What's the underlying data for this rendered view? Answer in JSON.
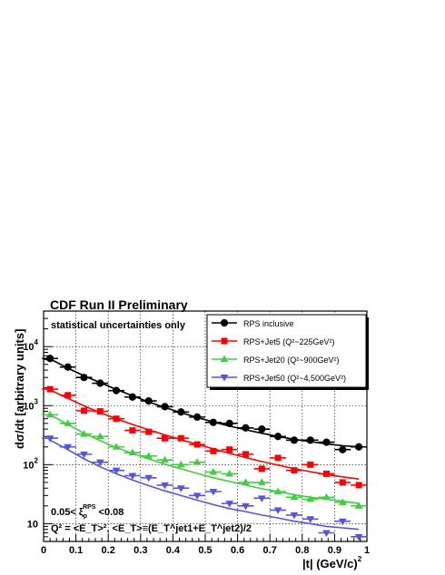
{
  "chart_data": {
    "type": "scatter",
    "title": "CDF Run II Preliminary",
    "subtitle": "statistical uncertainties only",
    "xlabel": "|t| (GeV/c)",
    "xlabel_sup": "2",
    "ylabel": "dσ/dt [arbitrary units]",
    "xlim": [
      0,
      1
    ],
    "ylim": [
      5,
      40000
    ],
    "yscale": "log",
    "grid": true,
    "legend_position": "top-right",
    "x_ticks": [
      "0",
      "0.1",
      "0.2",
      "0.3",
      "0.4",
      "0.5",
      "0.6",
      "0.7",
      "0.8",
      "0.9",
      "1"
    ],
    "y_ticks": [
      {
        "value": 10,
        "base": "10",
        "exp": ""
      },
      {
        "value": 100,
        "base": "10",
        "exp": "2"
      },
      {
        "value": 1000,
        "base": "10",
        "exp": "3"
      },
      {
        "value": 10000,
        "base": "10",
        "exp": "4"
      }
    ],
    "annotations": [
      {
        "base": "0.05< ξ",
        "sub": "p",
        "sup": "RPS",
        "rest": " <0.08"
      },
      {
        "text": "Q² = <E_T>², <E_T>≡(E_T^jet1+E_T^jet2)/2"
      }
    ],
    "series": [
      {
        "name": "RPS inclusive",
        "color": "#000000",
        "marker": "circle",
        "x": [
          0.02,
          0.075,
          0.125,
          0.175,
          0.225,
          0.275,
          0.325,
          0.375,
          0.425,
          0.475,
          0.525,
          0.575,
          0.625,
          0.675,
          0.725,
          0.775,
          0.825,
          0.875,
          0.925,
          0.975
        ],
        "y": [
          6300,
          4500,
          3000,
          2400,
          1800,
          1400,
          1200,
          960,
          780,
          640,
          520,
          500,
          420,
          400,
          300,
          260,
          260,
          240,
          180,
          200
        ],
        "curve": [
          6200,
          4300,
          3200,
          2450,
          1880,
          1470,
          1160,
          930,
          760,
          630,
          530,
          450,
          390,
          340,
          300,
          270,
          245,
          225,
          210,
          200
        ]
      },
      {
        "name": "RPS+Jet5 (Q²~225GeV²)",
        "color": "#ff0000",
        "marker": "square",
        "x": [
          0.02,
          0.075,
          0.125,
          0.175,
          0.225,
          0.275,
          0.325,
          0.375,
          0.425,
          0.475,
          0.525,
          0.575,
          0.625,
          0.675,
          0.725,
          0.775,
          0.825,
          0.875,
          0.925,
          0.975
        ],
        "y": [
          1900,
          1500,
          820,
          800,
          600,
          380,
          360,
          280,
          280,
          220,
          170,
          180,
          150,
          85,
          130,
          80,
          100,
          70,
          50,
          45
        ],
        "curve": [
          1850,
          1330,
          990,
          760,
          600,
          480,
          390,
          320,
          265,
          220,
          185,
          155,
          132,
          113,
          98,
          86,
          76,
          68,
          62,
          57
        ]
      },
      {
        "name": "RPS+Jet20 (Q²~900GeV²)",
        "color": "#44cc44",
        "marker": "triangle-up",
        "x": [
          0.02,
          0.075,
          0.125,
          0.175,
          0.225,
          0.275,
          0.325,
          0.375,
          0.425,
          0.475,
          0.525,
          0.575,
          0.625,
          0.675,
          0.725,
          0.775,
          0.825,
          0.875,
          0.925,
          0.975
        ],
        "y": [
          700,
          500,
          330,
          300,
          200,
          160,
          140,
          120,
          100,
          110,
          75,
          70,
          50,
          50,
          35,
          28,
          26,
          28,
          23,
          20
        ],
        "curve": [
          700,
          480,
          340,
          255,
          195,
          155,
          125,
          102,
          85,
          71,
          60,
          52,
          45,
          39,
          35,
          31,
          28,
          26,
          24,
          22
        ]
      },
      {
        "name": "RPS+Jet50 (Q²~4,500GeV²)",
        "color": "#5555dd",
        "marker": "triangle-down",
        "x": [
          0.02,
          0.075,
          0.125,
          0.175,
          0.225,
          0.275,
          0.325,
          0.375,
          0.425,
          0.475,
          0.525,
          0.575,
          0.625,
          0.675,
          0.725,
          0.775,
          0.825,
          0.875,
          0.925,
          0.975
        ],
        "y": [
          280,
          200,
          150,
          110,
          80,
          65,
          60,
          45,
          40,
          30,
          35,
          22,
          20,
          27,
          17,
          14,
          12,
          7,
          11,
          6
        ],
        "curve": [
          260,
          180,
          125,
          92,
          70,
          55,
          44,
          36,
          30,
          25,
          21,
          18,
          16,
          14,
          12.5,
          11,
          10,
          9,
          8.5,
          8
        ]
      }
    ]
  }
}
